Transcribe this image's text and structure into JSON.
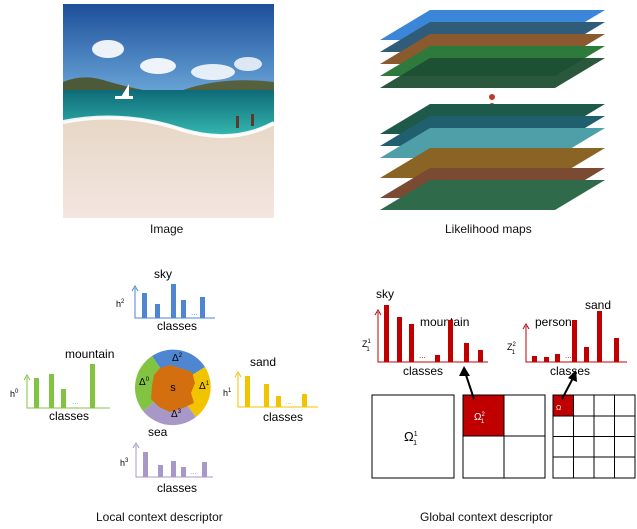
{
  "captions": {
    "image": "Image",
    "likelihood": "Likelihood maps",
    "local": "Local context descriptor",
    "global": "Global context descriptor"
  },
  "local": {
    "sky": {
      "label": "sky",
      "axis": "h",
      "sup": "2",
      "classes": "classes",
      "dots": "...",
      "color": "#4f86d1"
    },
    "mountain": {
      "label": "mountain",
      "axis": "h",
      "sup": "0",
      "classes": "classes",
      "dots": "...",
      "color": "#82c341"
    },
    "sand": {
      "label": "sand",
      "axis": "h",
      "sup": "1",
      "classes": "classes",
      "dots": "...",
      "color": "#f2c400"
    },
    "sea": {
      "label": "sea",
      "axis": "h",
      "sup": "3",
      "classes": "classes",
      "dots": "...",
      "color": "#a898c8"
    },
    "center": "s",
    "deltas": [
      {
        "label": "Δ",
        "sup": "2"
      },
      {
        "label": "Δ",
        "sup": "0"
      },
      {
        "label": "Δ",
        "sup": "1"
      },
      {
        "label": "Δ",
        "sup": "3"
      }
    ],
    "center_color": "#d46f10"
  },
  "global": {
    "hist1": {
      "labels": [
        "sky",
        "mountain"
      ],
      "axis": "Z",
      "sub": "1",
      "sup": "1",
      "classes": "classes",
      "dots": "...",
      "color": "#c00000"
    },
    "hist2": {
      "labels": [
        "person",
        "sand"
      ],
      "axis": "Z",
      "sub": "1",
      "sup": "2",
      "classes": "classes",
      "dots": "...",
      "color": "#c00000"
    },
    "omega": {
      "label": "Ω",
      "sub": "1",
      "sup": "1"
    },
    "omega_small": {
      "label": "Ω",
      "sub": "1",
      "sup": "2"
    },
    "omega_tiny": "Ω",
    "cell_color": "#c00000"
  }
}
